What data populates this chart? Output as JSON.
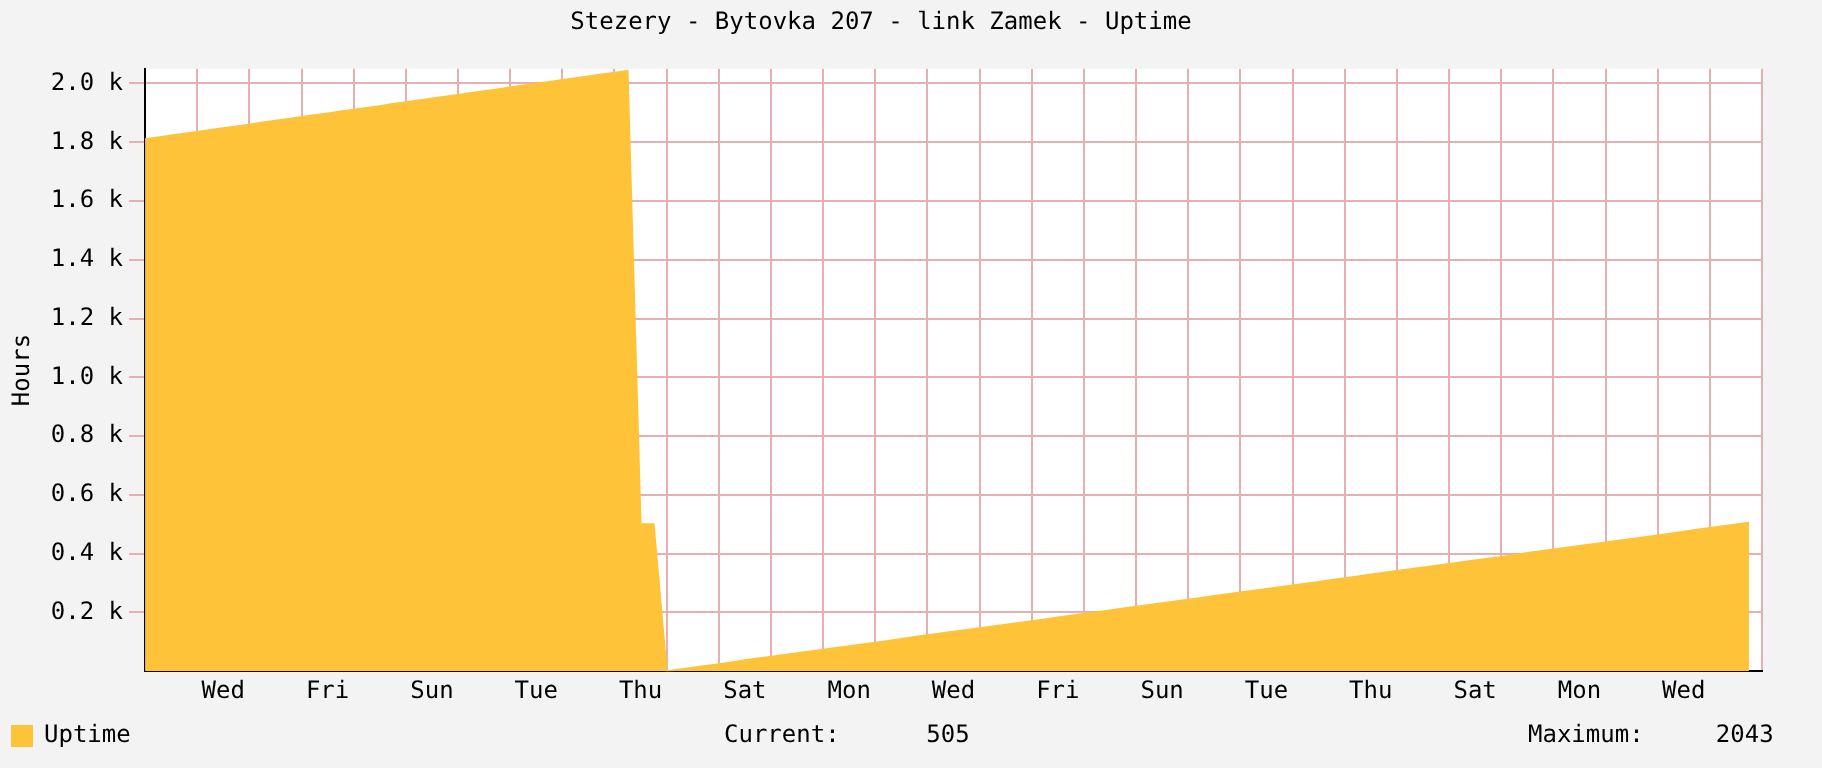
{
  "chart_data": {
    "type": "area",
    "title": "Stezery - Bytovka 207 - link Zamek - Uptime",
    "ylabel": "Hours",
    "categories": [
      null,
      null,
      null,
      null,
      null,
      null,
      "Wed",
      null,
      null,
      null,
      null,
      null,
      null,
      null,
      "Fri",
      null,
      null,
      null,
      null,
      null,
      null,
      null,
      "Sun",
      null,
      null,
      null,
      null,
      null,
      null,
      null,
      "Tue",
      null,
      null,
      null,
      null,
      null,
      null,
      null,
      "Thu",
      null,
      null,
      null,
      null,
      null,
      null,
      null,
      "Sat",
      null,
      null,
      null,
      null,
      null,
      null,
      null,
      "Mon",
      null,
      null,
      null,
      null,
      null,
      null,
      null,
      "Wed",
      null,
      null,
      null,
      null,
      null,
      null,
      null,
      "Fri",
      null,
      null,
      null,
      null,
      null,
      null,
      null,
      "Sun",
      null,
      null,
      null,
      null,
      null,
      null,
      null,
      "Tue",
      null,
      null,
      null,
      null,
      null,
      null,
      null,
      "Thu",
      null,
      null,
      null,
      null,
      null,
      null,
      null,
      "Sat",
      null,
      null,
      null,
      null,
      null,
      null,
      null,
      "Mon",
      null,
      null,
      null,
      null,
      null,
      null,
      null,
      "Wed",
      null,
      null,
      null,
      null,
      null,
      null
    ],
    "series": [
      {
        "name": "Uptime",
        "color": "#ffc33a",
        "values": [
          1810,
          1816,
          1823,
          1829,
          1835,
          1842,
          1848,
          1854,
          1860,
          1867,
          1873,
          1879,
          1886,
          1892,
          1898,
          1905,
          1911,
          1917,
          1923,
          1930,
          1936,
          1942,
          1949,
          1955,
          1961,
          1968,
          1974,
          1980,
          1986,
          1993,
          1999,
          2005,
          2012,
          2018,
          2024,
          2031,
          2037,
          2043,
          500,
          500,
          0,
          6,
          12,
          18,
          24,
          30,
          37,
          43,
          49,
          55,
          61,
          67,
          73,
          79,
          85,
          91,
          97,
          103,
          110,
          116,
          122,
          128,
          134,
          140,
          146,
          152,
          158,
          164,
          170,
          176,
          183,
          189,
          195,
          201,
          207,
          213,
          219,
          225,
          231,
          237,
          243,
          249,
          256,
          262,
          268,
          274,
          280,
          286,
          292,
          298,
          304,
          310,
          316,
          322,
          329,
          335,
          341,
          347,
          353,
          359,
          365,
          371,
          377,
          383,
          389,
          395,
          402,
          408,
          414,
          420,
          426,
          432,
          438,
          444,
          450,
          456,
          462,
          468,
          475,
          481,
          487,
          493,
          499,
          505,
          null
        ]
      }
    ],
    "ylim": [
      0,
      2050
    ],
    "yticks": [
      {
        "value": 200,
        "label": "0.2 k"
      },
      {
        "value": 400,
        "label": "0.4 k"
      },
      {
        "value": 600,
        "label": "0.6 k"
      },
      {
        "value": 800,
        "label": "0.8 k"
      },
      {
        "value": 1000,
        "label": "1.0 k"
      },
      {
        "value": 1200,
        "label": "1.2 k"
      },
      {
        "value": 1400,
        "label": "1.4 k"
      },
      {
        "value": 1600,
        "label": "1.6 k"
      },
      {
        "value": 1800,
        "label": "1.8 k"
      },
      {
        "value": 2000,
        "label": "2.0 k"
      }
    ],
    "grid": true,
    "legend": "bottom left",
    "annotations": [
      "Current:      505",
      "Maximum:     2043"
    ]
  }
}
